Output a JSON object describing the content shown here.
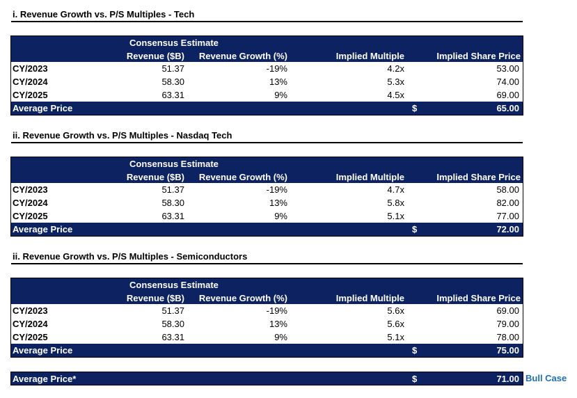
{
  "columns": {
    "group": "Consensus Estimate",
    "revenue": "Revenue ($B)",
    "growth": "Revenue Growth (%)",
    "multiple": "Implied Multiple",
    "price": "Implied Share Price"
  },
  "sections": [
    {
      "title": "i. Revenue Growth vs. P/S Multiples - Tech",
      "rows": [
        {
          "label": "CY/2023",
          "revenue": "51.37",
          "growth": "-19%",
          "multiple": "4.2x",
          "price": "53.00"
        },
        {
          "label": "CY/2024",
          "revenue": "58.30",
          "growth": "13%",
          "multiple": "5.3x",
          "price": "74.00"
        },
        {
          "label": "CY/2025",
          "revenue": "63.31",
          "growth": "9%",
          "multiple": "4.5x",
          "price": "69.00"
        }
      ],
      "avg_label": "Average Price",
      "avg_currency": "$",
      "avg_value": "65.00"
    },
    {
      "title": "ii. Revenue Growth vs. P/S Multiples - Nasdaq Tech",
      "rows": [
        {
          "label": "CY/2023",
          "revenue": "51.37",
          "growth": "-19%",
          "multiple": "4.7x",
          "price": "58.00"
        },
        {
          "label": "CY/2024",
          "revenue": "58.30",
          "growth": "13%",
          "multiple": "5.8x",
          "price": "82.00"
        },
        {
          "label": "CY/2025",
          "revenue": "63.31",
          "growth": "9%",
          "multiple": "5.1x",
          "price": "77.00"
        }
      ],
      "avg_label": "Average Price",
      "avg_currency": "$",
      "avg_value": "72.00"
    },
    {
      "title": "ii. Revenue Growth vs. P/S Multiples - Semiconductors",
      "rows": [
        {
          "label": "CY/2023",
          "revenue": "51.37",
          "growth": "-19%",
          "multiple": "5.6x",
          "price": "69.00"
        },
        {
          "label": "CY/2024",
          "revenue": "58.30",
          "growth": "13%",
          "multiple": "5.6x",
          "price": "79.00"
        },
        {
          "label": "CY/2025",
          "revenue": "63.31",
          "growth": "9%",
          "multiple": "5.1x",
          "price": "78.00"
        }
      ],
      "avg_label": "Average Price",
      "avg_currency": "$",
      "avg_value": "75.00"
    }
  ],
  "final": {
    "label": "Average Price*",
    "currency": "$",
    "value": "71.00",
    "note": "Bull Case"
  },
  "colors": {
    "header_bg": "#0d2260",
    "note_text": "#1f6fb5"
  }
}
